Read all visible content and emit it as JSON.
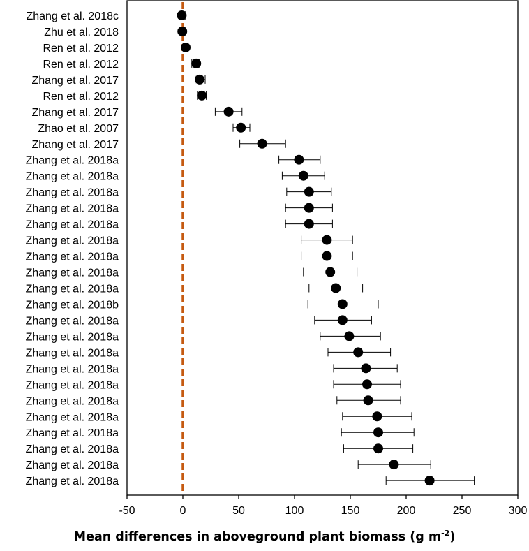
{
  "chart_data": {
    "type": "scatter",
    "subtype": "forest-plot",
    "title": "",
    "xlabel": "Mean differences in aboveground plant biomass (g m",
    "xlabel_superscript": "-2",
    "xlabel_suffix": ")",
    "ylabel": "",
    "xlim": [
      -50,
      300
    ],
    "xticks": [
      -50,
      0,
      50,
      100,
      150,
      200,
      250,
      300
    ],
    "xtick_labels": [
      "-50",
      "0",
      "50",
      "100",
      "150",
      "200",
      "250",
      "300"
    ],
    "grid": false,
    "reference_line": {
      "x": 0,
      "style": "dashed",
      "color": "#C55A11"
    },
    "marker_color": "#000000",
    "studies": [
      {
        "label": "Zhang et al. 2018c",
        "mean": -1,
        "lower": -3,
        "upper": 2
      },
      {
        "label": "Zhu et al. 2018",
        "mean": -0.5,
        "lower": -2,
        "upper": 2
      },
      {
        "label": "Ren et al. 2012",
        "mean": 2.5,
        "lower": 1,
        "upper": 4
      },
      {
        "label": "Ren et al. 2012",
        "mean": 12,
        "lower": 8,
        "upper": 15
      },
      {
        "label": "Zhang et al. 2017",
        "mean": 15,
        "lower": 11,
        "upper": 20
      },
      {
        "label": "Ren et al. 2012",
        "mean": 17,
        "lower": 13,
        "upper": 21
      },
      {
        "label": "Zhang et al. 2017",
        "mean": 41,
        "lower": 29,
        "upper": 53
      },
      {
        "label": "Zhao et al. 2007",
        "mean": 52,
        "lower": 45,
        "upper": 60
      },
      {
        "label": "Zhang et al. 2017",
        "mean": 71,
        "lower": 51,
        "upper": 92
      },
      {
        "label": "Zhang et al. 2018a",
        "mean": 104,
        "lower": 86,
        "upper": 123
      },
      {
        "label": "Zhang et al. 2018a",
        "mean": 108,
        "lower": 89,
        "upper": 127
      },
      {
        "label": "Zhang et al. 2018a",
        "mean": 113,
        "lower": 93,
        "upper": 133
      },
      {
        "label": "Zhang et al. 2018a",
        "mean": 113,
        "lower": 92,
        "upper": 134
      },
      {
        "label": "Zhang et al. 2018a",
        "mean": 113,
        "lower": 92,
        "upper": 134
      },
      {
        "label": "Zhang et al. 2018a",
        "mean": 129,
        "lower": 106,
        "upper": 152
      },
      {
        "label": "Zhang et al. 2018a",
        "mean": 129,
        "lower": 106,
        "upper": 152
      },
      {
        "label": "Zhang et al. 2018a",
        "mean": 132,
        "lower": 108,
        "upper": 156
      },
      {
        "label": "Zhang et al. 2018a",
        "mean": 137,
        "lower": 113,
        "upper": 161
      },
      {
        "label": "Zhang et al. 2018b",
        "mean": 143,
        "lower": 112,
        "upper": 175
      },
      {
        "label": "Zhang et al. 2018a",
        "mean": 143,
        "lower": 118,
        "upper": 169
      },
      {
        "label": "Zhang et al. 2018a",
        "mean": 149,
        "lower": 123,
        "upper": 177
      },
      {
        "label": "Zhang et al. 2018a",
        "mean": 157,
        "lower": 130,
        "upper": 186
      },
      {
        "label": "Zhang et al. 2018a",
        "mean": 164,
        "lower": 135,
        "upper": 192
      },
      {
        "label": "Zhang et al. 2018a",
        "mean": 165,
        "lower": 135,
        "upper": 195
      },
      {
        "label": "Zhang et al. 2018a",
        "mean": 166,
        "lower": 138,
        "upper": 195
      },
      {
        "label": "Zhang et al. 2018a",
        "mean": 174,
        "lower": 143,
        "upper": 205
      },
      {
        "label": "Zhang et al. 2018a",
        "mean": 175,
        "lower": 142,
        "upper": 207
      },
      {
        "label": "Zhang et al. 2018a",
        "mean": 175,
        "lower": 144,
        "upper": 206
      },
      {
        "label": "Zhang et al. 2018a",
        "mean": 189,
        "lower": 157,
        "upper": 222
      },
      {
        "label": "Zhang et al. 2018a",
        "mean": 221,
        "lower": 182,
        "upper": 261
      }
    ]
  }
}
